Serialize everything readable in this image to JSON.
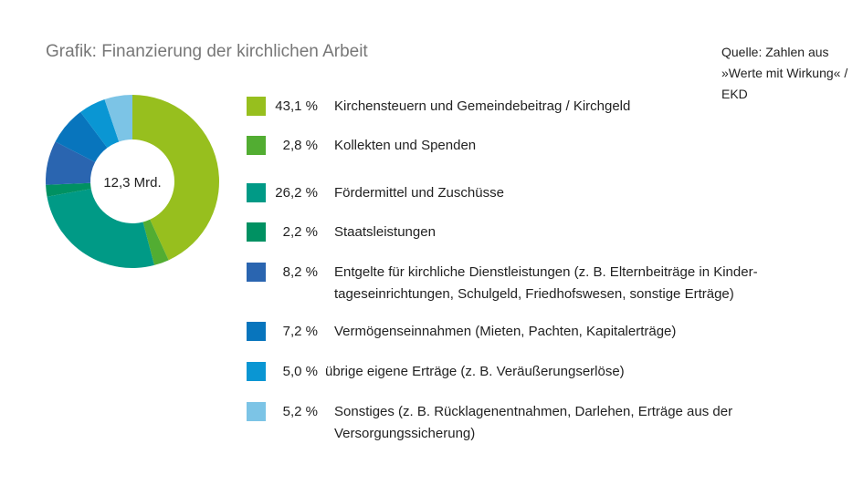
{
  "title": "Grafik: Finanzierung der kirchlichen Arbeit",
  "source": "Quelle: Zahlen aus »Werte mit Wirkung« / EKD",
  "chart_data": {
    "type": "pie",
    "center_label": "12,3 Mrd.",
    "slices": [
      {
        "value": 43.1,
        "pct_label": "43,1 %",
        "label": "Kirchensteuern und Gemeindebeitrag / Kirchgeld",
        "color": "#97bf1e"
      },
      {
        "value": 2.8,
        "pct_label": "2,8 %",
        "label": "Kollekten und Spenden",
        "color": "#52ad32"
      },
      {
        "value": 26.2,
        "pct_label": "26,2 %",
        "label": "Fördermittel und Zuschüsse",
        "color": "#009a86"
      },
      {
        "value": 2.2,
        "pct_label": "2,2 %",
        "label": "Staatsleistungen",
        "color": "#009162"
      },
      {
        "value": 8.2,
        "pct_label": "8,2 %",
        "label": "Entgelte für kirchliche Dienstleistungen (z. B. Elternbeiträge in Kinder­tageseinrichtungen, Schulgeld, Friedhofswesen, sonstige Erträge)",
        "color": "#2a65b0"
      },
      {
        "value": 7.2,
        "pct_label": "7,2 %",
        "label": "Vermögenseinnahmen (Mieten, Pachten, Kapitalerträge)",
        "color": "#0875bd"
      },
      {
        "value": 5.0,
        "pct_label": "5,0 %",
        "label": "übrige eigene Erträge (z. B. Veräußerungserlöse)",
        "color": "#0a96d3"
      },
      {
        "value": 5.2,
        "pct_label": "5,2 %",
        "label": "Sonstiges (z. B. Rücklagenentnahmen, Darlehen, Erträge aus der Versorgungssicherung)",
        "color": "#7cc4e6"
      }
    ]
  }
}
